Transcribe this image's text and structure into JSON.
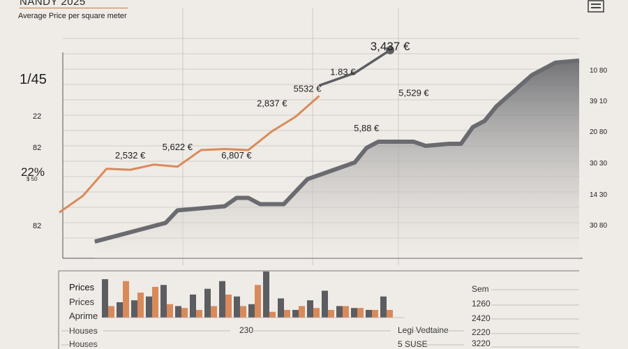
{
  "header": {
    "title": "NANDY 2025",
    "subtitle": "Average Price per square meter"
  },
  "left_axis_labels": [
    "1/45",
    "22",
    "82",
    "22%",
    "82"
  ],
  "left_axis_small": "$ 50",
  "right_axis_labels": [
    "10 80",
    "39 10",
    "20 80",
    "30 30",
    "14 30",
    "30 80"
  ],
  "annotations": [
    "3,437 €",
    "1.83 €",
    "5532 €",
    "2,837 €",
    "5,529 €",
    "5,88 €",
    "2,532 €",
    "5,622 €",
    "6,807 €"
  ],
  "bottom_left_labels": [
    "Prices",
    "Prices",
    "Aprime",
    "Houses",
    "Houses"
  ],
  "bottom_mid_labels": [
    "230",
    "Legi Vedtaine",
    "5 SUSE"
  ],
  "bottom_right_labels": [
    "Sem",
    "1260",
    "2420",
    "2220",
    "3220"
  ],
  "colors": {
    "background": "#efebe6",
    "orange": "#d98a5a",
    "dark_gray": "#5c5d61",
    "area_fill": "#8a8b8f",
    "grid": "#c6c3bf"
  },
  "chart_data": {
    "type": "line",
    "title": "NANDY 2025",
    "subtitle": "Average Price per square meter",
    "x": [
      0,
      1,
      2,
      3,
      4,
      5,
      6,
      7,
      8,
      9,
      10,
      11,
      12,
      13,
      14,
      15,
      16,
      17,
      18,
      19,
      20,
      21,
      22,
      23,
      24,
      25,
      26,
      27,
      28,
      29,
      30,
      31,
      32,
      33,
      34,
      35,
      36
    ],
    "series": [
      {
        "name": "",
        "color": "#d98a5a",
        "points": [
          [
            0,
            2.2
          ],
          [
            2,
            3.0
          ],
          [
            4,
            4.3
          ],
          [
            6,
            4.25
          ],
          [
            8,
            4.5
          ],
          [
            10,
            4.4
          ],
          [
            12,
            5.2
          ],
          [
            14,
            5.25
          ],
          [
            16,
            5.2
          ],
          [
            18,
            6.1
          ],
          [
            20,
            6.8
          ],
          [
            22,
            7.8
          ]
        ]
      },
      {
        "name": "",
        "color": "#5c5d61",
        "points": [
          [
            22,
            8.3
          ],
          [
            25,
            8.9
          ],
          [
            28,
            10.0
          ]
        ]
      },
      {
        "name": "",
        "type": "area",
        "color": "#6a6b70",
        "points": [
          [
            3,
            0.8
          ],
          [
            5,
            1.1
          ],
          [
            7,
            1.4
          ],
          [
            9,
            1.7
          ],
          [
            10,
            2.3
          ],
          [
            12,
            2.4
          ],
          [
            14,
            2.5
          ],
          [
            15,
            2.9
          ],
          [
            16,
            2.9
          ],
          [
            17,
            2.6
          ],
          [
            19,
            2.6
          ],
          [
            21,
            3.8
          ],
          [
            23,
            4.2
          ],
          [
            25,
            4.6
          ],
          [
            26,
            5.3
          ],
          [
            27,
            5.6
          ],
          [
            30,
            5.6
          ],
          [
            31,
            5.4
          ],
          [
            33,
            5.5
          ],
          [
            34,
            5.5
          ],
          [
            35,
            6.3
          ],
          [
            36,
            6.6
          ],
          [
            37,
            7.3
          ],
          [
            38,
            7.8
          ],
          [
            40,
            8.8
          ],
          [
            42,
            9.4
          ],
          [
            44,
            9.5
          ]
        ]
      }
    ],
    "annotations": [
      {
        "label": "3,437 €",
        "x": 28,
        "y": 10.0
      },
      {
        "label": "1.83 €",
        "x": 24,
        "y": 8.8
      },
      {
        "label": "5532 €",
        "x": 21,
        "y": 8.0
      },
      {
        "label": "2,837 €",
        "x": 18,
        "y": 7.3
      },
      {
        "label": "5,529 €",
        "x": 30,
        "y": 7.8
      },
      {
        "label": "5,88 €",
        "x": 26,
        "y": 6.1
      },
      {
        "label": "2,532 €",
        "x": 6,
        "y": 4.8
      },
      {
        "label": "5,622 €",
        "x": 10,
        "y": 5.2
      },
      {
        "label": "6,807 €",
        "x": 15,
        "y": 4.8
      }
    ],
    "ylim": [
      0,
      11
    ],
    "grid": true,
    "bars": {
      "series": [
        {
          "name": "Prices",
          "color": "#5c5d61",
          "values": [
            1.0,
            0.4,
            0.45,
            0.55,
            0.85,
            0.3,
            0.6,
            0.75,
            0.95,
            0.55,
            0.35,
            1.2,
            0.5,
            0.2,
            0.45,
            0.7,
            0.3,
            0.25,
            0.2,
            0.55
          ]
        },
        {
          "name": "Aprime",
          "color": "#d98a5a",
          "values": [
            0.3,
            0.95,
            0.65,
            0.8,
            0.35,
            0.25,
            0.2,
            0.3,
            0.6,
            0.3,
            0.85,
            0.15,
            0.2,
            0.3,
            0.25,
            0.2,
            0.3,
            0.25,
            0.2,
            0.2
          ]
        }
      ]
    }
  }
}
